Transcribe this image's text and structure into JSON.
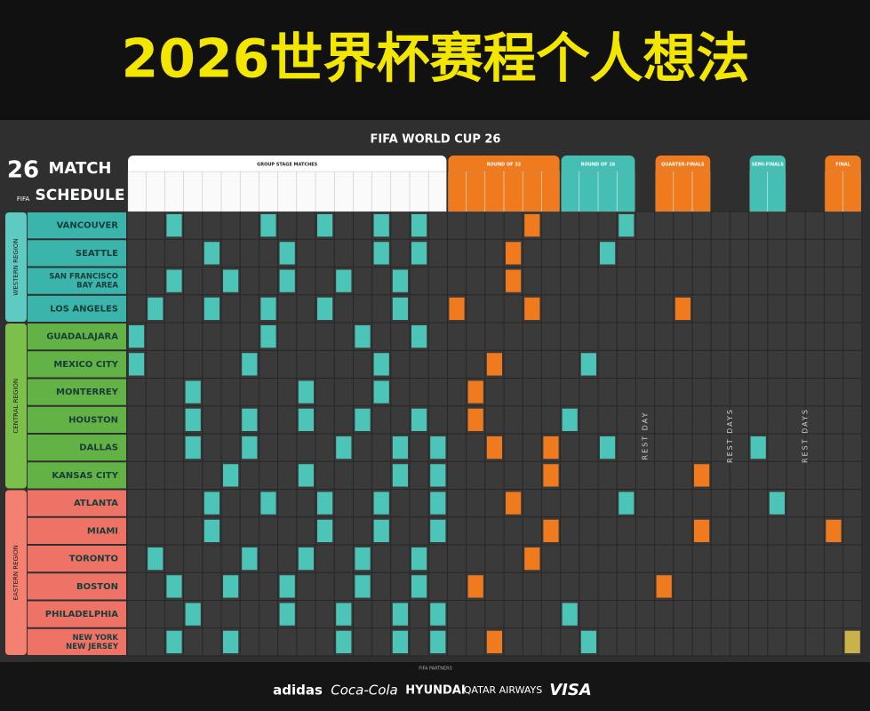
{
  "header": {
    "title": "2026世界杯赛程个人想法"
  },
  "schedule": {
    "brand": "FIFA WORLD CUP 26",
    "logo": [
      "MATCH",
      "SCHEDULE"
    ],
    "badge": "FIFA",
    "stages": [
      "GROUP STAGE MATCHES",
      "ROUND OF 32",
      "ROUND OF 16",
      "QUARTER-FINALS",
      "SEMI-FINALS",
      "FINAL"
    ],
    "rest_labels": [
      "REST DAY",
      "REST DAYS",
      "REST DAYS"
    ],
    "regions": [
      {
        "name": "WESTERN REGION",
        "cities": [
          [
            "VANCOUVER"
          ],
          [
            "SEATTLE"
          ],
          [
            "SAN FRANCISCO",
            "BAY AREA"
          ],
          [
            "LOS ANGELES"
          ]
        ]
      },
      {
        "name": "CENTRAL REGION",
        "cities": [
          [
            "GUADALAJARA"
          ],
          [
            "MEXICO CITY"
          ],
          [
            "MONTERREY"
          ],
          [
            "HOUSTON"
          ],
          [
            "DALLAS"
          ],
          [
            "KANSAS CITY"
          ]
        ]
      },
      {
        "name": "EASTERN REGION",
        "cities": [
          [
            "ATLANTA"
          ],
          [
            "MIAMI"
          ],
          [
            "TORONTO"
          ],
          [
            "BOSTON"
          ],
          [
            "PHILADELPHIA"
          ],
          [
            "NEW YORK",
            "NEW JERSEY"
          ]
        ]
      }
    ]
  },
  "footer": {
    "partners_label": "FIFA PARTNERS",
    "sponsors": [
      "adidas",
      "Coca-Cola",
      "HYUNDAI",
      "QATAR AIRWAYS",
      "VISA"
    ]
  }
}
